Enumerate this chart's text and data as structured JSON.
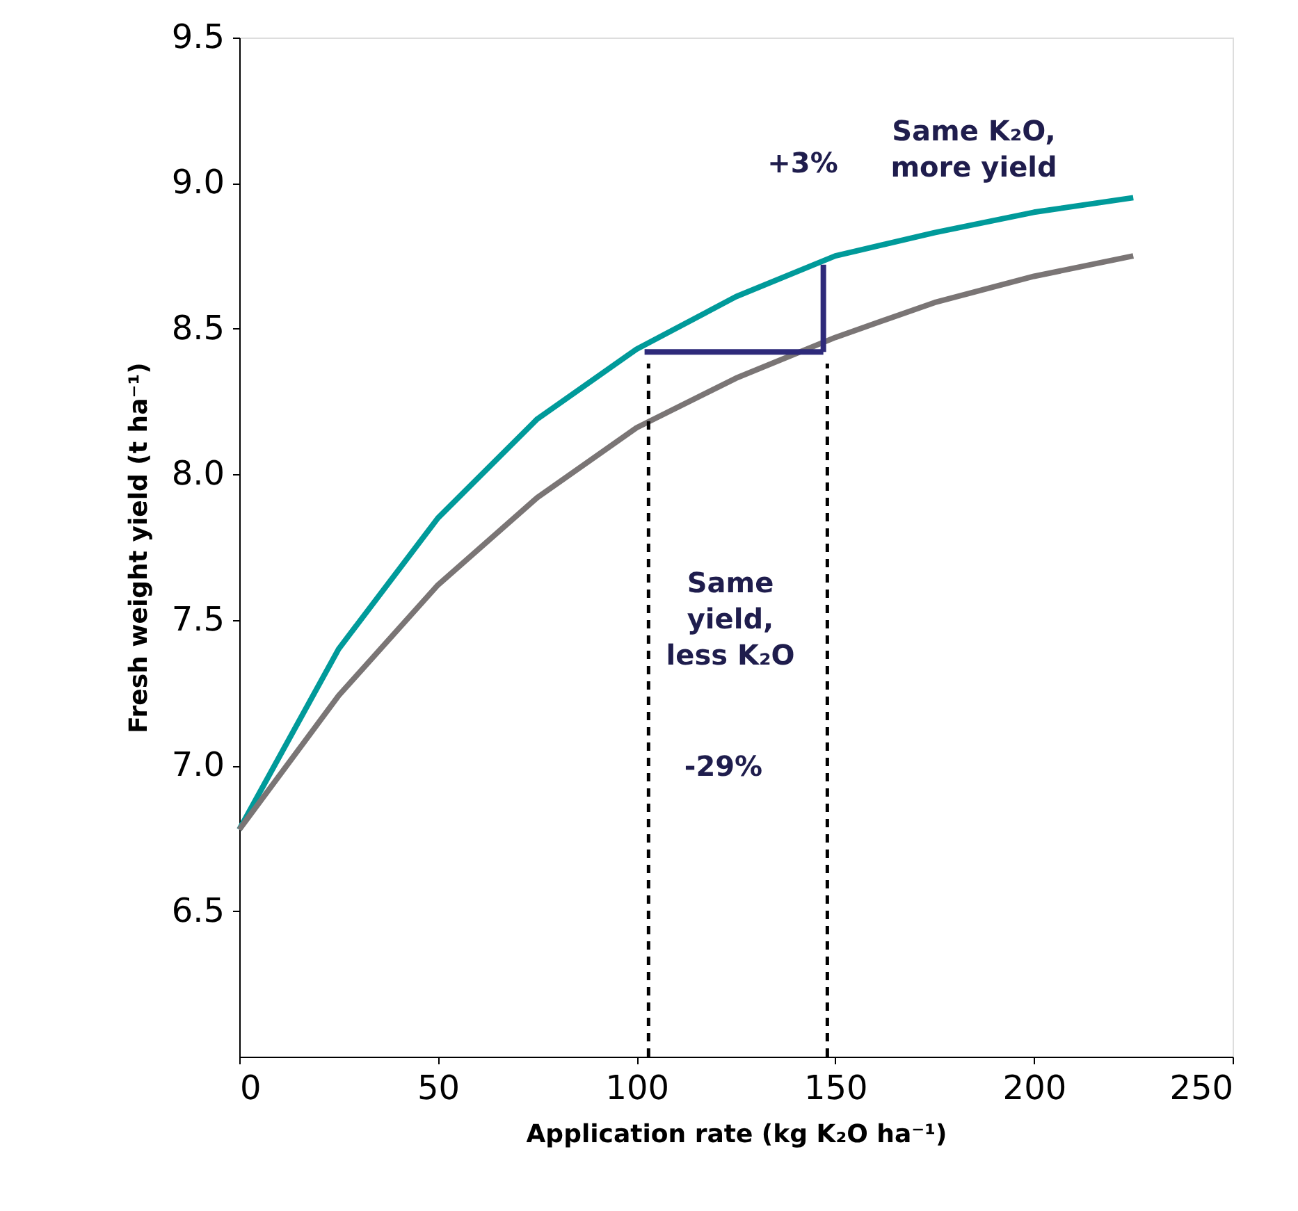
{
  "chart_data": {
    "type": "line",
    "xlabel": "Application rate (kg K₂O ha⁻¹)",
    "ylabel": "Fresh weight yield (t ha⁻¹)",
    "xlim": [
      0,
      250
    ],
    "xticks": [
      0,
      50,
      100,
      150,
      200,
      250
    ],
    "ylim": [
      6.0,
      9.5
    ],
    "yticks": [
      6.5,
      {
        "value": 7,
        "label": "7.0"
      },
      7.5,
      {
        "value": 8,
        "label": "8.0"
      },
      8.5,
      {
        "value": 9,
        "label": "9.0"
      },
      9.5
    ],
    "grid": false,
    "series": [
      {
        "color": "#009a9a",
        "x": [
          0,
          25,
          50,
          75,
          100,
          125,
          150,
          175,
          200,
          225
        ],
        "values": [
          6.78,
          7.4,
          7.85,
          8.19,
          8.43,
          8.61,
          8.75,
          8.83,
          8.9,
          8.95
        ]
      },
      {
        "color": "#7a7575",
        "x": [
          0,
          25,
          50,
          75,
          100,
          125,
          150,
          175,
          200,
          225
        ],
        "values": [
          6.78,
          7.24,
          7.62,
          7.92,
          8.16,
          8.33,
          8.47,
          8.59,
          8.68,
          8.75
        ]
      },
      {
        "color": "#000000",
        "line_style": "dashed",
        "x": [
          103,
          103
        ],
        "values": [
          6.0,
          8.38
        ]
      },
      {
        "color": "#000000",
        "line_style": "dashed",
        "x": [
          148,
          148
        ],
        "values": [
          6.0,
          8.38
        ]
      },
      {
        "color": "#2e2a7a",
        "x": [
          147,
          102
        ],
        "values": [
          8.42,
          8.42
        ]
      },
      {
        "color": "#2e2a7a",
        "x": [
          147,
          147
        ],
        "values": [
          8.42,
          8.72
        ]
      }
    ],
    "annotations": [
      "Same K₂O,\nmore yield",
      "+3%",
      "Same\nyield,\nless K₂O",
      "-29%"
    ]
  }
}
